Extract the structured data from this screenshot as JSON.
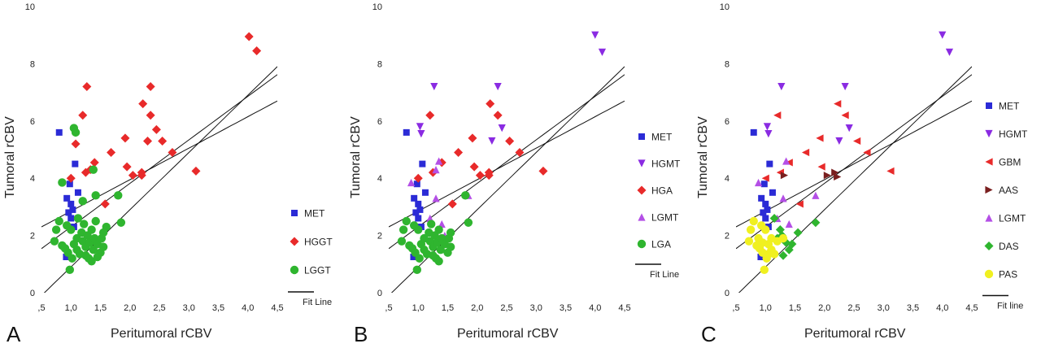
{
  "chart_data": [
    {
      "panel": "A",
      "type": "scatter",
      "xlabel": "Peritumoral rCBV",
      "ylabel": "Tumoral rCBV",
      "xlim": [
        0.5,
        4.5
      ],
      "ylim": [
        0,
        10
      ],
      "xticks": [
        ",5",
        "1,0",
        "1,5",
        "2,0",
        "2,5",
        "3,0",
        "3,5",
        "4,0",
        "4,5"
      ],
      "yticks": [
        "0",
        "2",
        "4",
        "6",
        "8",
        "10"
      ],
      "fit_label": "Fit Line",
      "fit": {
        "slope": 1.52,
        "intercept": 0.78,
        "ci": [
          [
            2.0,
            -1.1
          ],
          [
            1.1,
            1.75
          ]
        ]
      },
      "legend_position": "right",
      "series": [
        {
          "name": "MET",
          "marker": "square",
          "color": "#2b2bd6",
          "points": [
            [
              0.8,
              5.6
            ],
            [
              1.07,
              4.5
            ],
            [
              1.12,
              3.5
            ],
            [
              0.93,
              3.3
            ],
            [
              1.0,
              3.1
            ],
            [
              1.03,
              2.9
            ],
            [
              0.96,
              2.8
            ],
            [
              1.05,
              2.3
            ],
            [
              0.92,
              1.25
            ],
            [
              1.0,
              2.6
            ],
            [
              0.98,
              3.8
            ]
          ]
        },
        {
          "name": "HGGT",
          "marker": "diamond",
          "color": "#e82a2a",
          "points": [
            [
              1.27,
              7.2
            ],
            [
              1.2,
              6.2
            ],
            [
              1.08,
              5.2
            ],
            [
              1.0,
              4.0
            ],
            [
              1.25,
              4.2
            ],
            [
              1.4,
              4.55
            ],
            [
              1.33,
              4.3
            ],
            [
              1.58,
              3.1
            ],
            [
              1.68,
              4.9
            ],
            [
              1.92,
              5.4
            ],
            [
              1.95,
              4.4
            ],
            [
              2.05,
              4.1
            ],
            [
              2.2,
              4.1
            ],
            [
              2.22,
              6.6
            ],
            [
              2.3,
              5.3
            ],
            [
              2.35,
              7.2
            ],
            [
              2.35,
              6.2
            ],
            [
              2.45,
              5.7
            ],
            [
              2.55,
              5.3
            ],
            [
              2.72,
              4.9
            ],
            [
              3.12,
              4.25
            ],
            [
              4.02,
              8.95
            ],
            [
              4.15,
              8.45
            ],
            [
              2.2,
              4.2
            ]
          ]
        },
        {
          "name": "LGGT",
          "marker": "circle",
          "color": "#2fb52f",
          "points": [
            [
              1.05,
              5.75
            ],
            [
              1.08,
              5.6
            ],
            [
              0.85,
              3.85
            ],
            [
              1.38,
              4.3
            ],
            [
              1.42,
              3.4
            ],
            [
              1.8,
              3.4
            ],
            [
              1.85,
              2.45
            ],
            [
              1.55,
              2.1
            ],
            [
              1.2,
              3.2
            ],
            [
              0.75,
              2.2
            ],
            [
              0.8,
              2.5
            ],
            [
              0.72,
              1.8
            ],
            [
              0.85,
              1.65
            ],
            [
              0.9,
              1.55
            ],
            [
              0.95,
              1.4
            ],
            [
              0.98,
              0.8
            ],
            [
              1.02,
              1.2
            ],
            [
              1.05,
              1.7
            ],
            [
              1.1,
              1.9
            ],
            [
              1.1,
              1.5
            ],
            [
              1.15,
              1.35
            ],
            [
              1.18,
              2.1
            ],
            [
              1.2,
              1.8
            ],
            [
              1.22,
              2.4
            ],
            [
              1.25,
              1.6
            ],
            [
              1.28,
              2.0
            ],
            [
              1.3,
              1.2
            ],
            [
              1.32,
              1.75
            ],
            [
              1.35,
              2.2
            ],
            [
              1.38,
              1.5
            ],
            [
              1.4,
              1.9
            ],
            [
              1.42,
              2.5
            ],
            [
              1.45,
              1.7
            ],
            [
              1.5,
              1.4
            ],
            [
              1.52,
              1.9
            ],
            [
              1.55,
              1.6
            ],
            [
              1.6,
              2.3
            ],
            [
              1.0,
              2.2
            ],
            [
              0.93,
              2.35
            ],
            [
              1.12,
              2.6
            ],
            [
              1.25,
              1.3
            ],
            [
              1.35,
              1.1
            ],
            [
              1.45,
              1.25
            ]
          ]
        }
      ]
    },
    {
      "panel": "B",
      "type": "scatter",
      "xlabel": "Peritumoral rCBV",
      "ylabel": "Tumoral rCBV",
      "xlim": [
        0.5,
        4.5
      ],
      "ylim": [
        0,
        10
      ],
      "xticks": [
        ",5",
        "1,0",
        "1,5",
        "2,0",
        "2,5",
        "3,0",
        "3,5",
        "4,0",
        "4,5"
      ],
      "yticks": [
        "0",
        "2",
        "4",
        "6",
        "8",
        "10"
      ],
      "fit_label": "Fit Line",
      "fit": {
        "slope": 1.52,
        "intercept": 0.78,
        "ci": [
          [
            2.0,
            -1.1
          ],
          [
            1.1,
            1.75
          ]
        ]
      },
      "legend_position": "right",
      "series": [
        {
          "name": "MET",
          "marker": "square",
          "color": "#2b2bd6",
          "points": [
            [
              0.8,
              5.6
            ],
            [
              1.07,
              4.5
            ],
            [
              1.12,
              3.5
            ],
            [
              0.93,
              3.3
            ],
            [
              1.0,
              3.1
            ],
            [
              1.03,
              2.9
            ],
            [
              0.96,
              2.8
            ],
            [
              1.05,
              2.3
            ],
            [
              0.92,
              1.25
            ],
            [
              1.0,
              2.6
            ],
            [
              0.98,
              3.8
            ]
          ]
        },
        {
          "name": "HGMT",
          "marker": "triangle-down",
          "color": "#8a2be2",
          "points": [
            [
              1.27,
              7.2
            ],
            [
              2.35,
              7.2
            ],
            [
              4.0,
              9.0
            ],
            [
              4.12,
              8.4
            ],
            [
              2.42,
              5.75
            ],
            [
              2.25,
              5.3
            ],
            [
              1.03,
              5.8
            ],
            [
              1.05,
              5.55
            ]
          ]
        },
        {
          "name": "HGA",
          "marker": "diamond",
          "color": "#e82a2a",
          "points": [
            [
              1.2,
              6.2
            ],
            [
              1.0,
              4.0
            ],
            [
              1.25,
              4.2
            ],
            [
              1.4,
              4.55
            ],
            [
              1.58,
              3.1
            ],
            [
              1.68,
              4.9
            ],
            [
              1.92,
              5.4
            ],
            [
              1.95,
              4.4
            ],
            [
              2.05,
              4.1
            ],
            [
              2.2,
              4.1
            ],
            [
              2.22,
              6.6
            ],
            [
              2.35,
              6.2
            ],
            [
              2.55,
              5.3
            ],
            [
              2.72,
              4.9
            ],
            [
              3.12,
              4.25
            ],
            [
              2.2,
              4.2
            ]
          ]
        },
        {
          "name": "LGMT",
          "marker": "triangle-up",
          "color": "#b44fe6",
          "points": [
            [
              1.3,
              3.3
            ],
            [
              1.35,
              4.6
            ],
            [
              1.85,
              3.4
            ],
            [
              1.4,
              2.4
            ],
            [
              1.2,
              2.6
            ],
            [
              1.45,
              2.0
            ],
            [
              0.88,
              3.85
            ],
            [
              1.3,
              4.3
            ]
          ]
        },
        {
          "name": "LGA",
          "marker": "circle",
          "color": "#2fb52f",
          "points": [
            [
              1.8,
              3.4
            ],
            [
              1.85,
              2.45
            ],
            [
              1.55,
              2.1
            ],
            [
              0.75,
              2.2
            ],
            [
              0.8,
              2.5
            ],
            [
              0.72,
              1.8
            ],
            [
              0.85,
              1.65
            ],
            [
              0.9,
              1.55
            ],
            [
              0.95,
              1.4
            ],
            [
              0.98,
              0.8
            ],
            [
              1.02,
              1.2
            ],
            [
              1.05,
              1.7
            ],
            [
              1.1,
              1.9
            ],
            [
              1.1,
              1.5
            ],
            [
              1.15,
              1.35
            ],
            [
              1.18,
              2.1
            ],
            [
              1.2,
              1.8
            ],
            [
              1.22,
              2.4
            ],
            [
              1.25,
              1.6
            ],
            [
              1.28,
              2.0
            ],
            [
              1.3,
              1.2
            ],
            [
              1.32,
              1.75
            ],
            [
              1.35,
              2.2
            ],
            [
              1.38,
              1.5
            ],
            [
              1.4,
              1.9
            ],
            [
              1.45,
              1.7
            ],
            [
              1.5,
              1.4
            ],
            [
              1.52,
              1.9
            ],
            [
              1.55,
              1.6
            ],
            [
              1.0,
              2.2
            ],
            [
              0.93,
              2.35
            ],
            [
              1.25,
              1.3
            ],
            [
              1.35,
              1.1
            ]
          ]
        }
      ]
    },
    {
      "panel": "C",
      "type": "scatter",
      "xlabel": "Peritumoral rCBV",
      "ylabel": "Tumoral rCBV",
      "xlim": [
        0.5,
        4.5
      ],
      "ylim": [
        0,
        10
      ],
      "xticks": [
        ",5",
        "1,0",
        "1,5",
        "2,0",
        "2,5",
        "3,0",
        "3,5",
        "4,0",
        "4,5"
      ],
      "yticks": [
        "0",
        "2",
        "4",
        "6",
        "8",
        "10"
      ],
      "fit_label": "Fit line",
      "fit": {
        "slope": 1.52,
        "intercept": 0.78,
        "ci": [
          [
            2.0,
            -1.1
          ],
          [
            1.1,
            1.75
          ]
        ]
      },
      "legend_position": "right",
      "series": [
        {
          "name": "MET",
          "marker": "square",
          "color": "#2b2bd6",
          "points": [
            [
              0.8,
              5.6
            ],
            [
              1.07,
              4.5
            ],
            [
              1.12,
              3.5
            ],
            [
              0.93,
              3.3
            ],
            [
              1.0,
              3.1
            ],
            [
              1.03,
              2.9
            ],
            [
              0.96,
              2.8
            ],
            [
              1.05,
              2.3
            ],
            [
              0.92,
              1.25
            ],
            [
              1.0,
              2.6
            ],
            [
              0.98,
              3.8
            ]
          ]
        },
        {
          "name": "HGMT",
          "marker": "triangle-down",
          "color": "#8a2be2",
          "points": [
            [
              1.27,
              7.2
            ],
            [
              2.35,
              7.2
            ],
            [
              4.0,
              9.0
            ],
            [
              4.12,
              8.4
            ],
            [
              2.42,
              5.75
            ],
            [
              2.25,
              5.3
            ],
            [
              1.03,
              5.8
            ],
            [
              1.05,
              5.55
            ]
          ]
        },
        {
          "name": "GBM",
          "marker": "triangle-left",
          "color": "#e82a2a",
          "points": [
            [
              1.2,
              6.2
            ],
            [
              1.25,
              4.2
            ],
            [
              1.4,
              4.55
            ],
            [
              1.58,
              3.1
            ],
            [
              1.68,
              4.9
            ],
            [
              1.92,
              5.4
            ],
            [
              1.95,
              4.4
            ],
            [
              2.22,
              6.6
            ],
            [
              2.35,
              6.2
            ],
            [
              2.55,
              5.3
            ],
            [
              2.72,
              4.9
            ],
            [
              3.12,
              4.25
            ],
            [
              1.0,
              4.0
            ]
          ]
        },
        {
          "name": "AAS",
          "marker": "triangle-right",
          "color": "#7a1f1f",
          "points": [
            [
              2.05,
              4.1
            ],
            [
              2.18,
              4.2
            ],
            [
              2.22,
              4.05
            ],
            [
              1.32,
              4.1
            ]
          ]
        },
        {
          "name": "LGMT",
          "marker": "triangle-up",
          "color": "#b44fe6",
          "points": [
            [
              1.3,
              3.3
            ],
            [
              1.35,
              4.6
            ],
            [
              1.85,
              3.4
            ],
            [
              1.4,
              2.4
            ],
            [
              1.2,
              2.6
            ],
            [
              0.88,
              3.85
            ]
          ]
        },
        {
          "name": "DAS",
          "marker": "diamond",
          "color": "#2fb52f",
          "points": [
            [
              1.85,
              2.45
            ],
            [
              1.55,
              2.1
            ],
            [
              1.15,
              2.6
            ],
            [
              1.25,
              2.2
            ],
            [
              1.35,
              1.75
            ],
            [
              1.4,
              1.5
            ],
            [
              1.3,
              1.3
            ],
            [
              1.45,
              1.7
            ],
            [
              1.2,
              1.9
            ],
            [
              1.28,
              2.0
            ]
          ]
        },
        {
          "name": "PAS",
          "marker": "circle",
          "color": "#f0f020",
          "points": [
            [
              0.75,
              2.2
            ],
            [
              0.8,
              2.5
            ],
            [
              0.72,
              1.8
            ],
            [
              0.85,
              1.65
            ],
            [
              0.9,
              1.55
            ],
            [
              0.95,
              1.4
            ],
            [
              0.98,
              0.8
            ],
            [
              1.02,
              1.2
            ],
            [
              1.05,
              1.7
            ],
            [
              1.1,
              1.5
            ],
            [
              1.15,
              1.35
            ],
            [
              1.0,
              2.2
            ],
            [
              0.93,
              2.35
            ],
            [
              1.1,
              1.9
            ],
            [
              1.2,
              1.8
            ],
            [
              0.88,
              1.9
            ],
            [
              1.05,
              1.35
            ],
            [
              0.95,
              1.75
            ],
            [
              1.3,
              1.9
            ]
          ]
        }
      ]
    }
  ]
}
